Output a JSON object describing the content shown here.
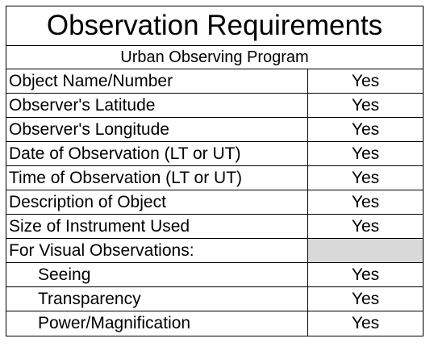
{
  "title": "Observation Requirements",
  "subtitle": "Urban Observing Program",
  "rows": [
    {
      "label": "Object Name/Number",
      "value": "Yes"
    },
    {
      "label": "Observer's Latitude",
      "value": "Yes"
    },
    {
      "label": "Observer's Longitude",
      "value": "Yes"
    },
    {
      "label": "Date of Observation (LT or UT)",
      "value": "Yes"
    },
    {
      "label": "Time of Observation (LT or UT)",
      "value": "Yes"
    },
    {
      "label": "Description of Object",
      "value": "Yes"
    },
    {
      "label": "Size of Instrument Used",
      "value": "Yes"
    },
    {
      "label": "For Visual Observations:",
      "value": ""
    },
    {
      "label": "Seeing",
      "value": "Yes"
    },
    {
      "label": "Transparency",
      "value": "Yes"
    },
    {
      "label": "Power/Magnification",
      "value": "Yes"
    }
  ],
  "colors": {
    "border": "#000000",
    "shaded_cell": "#d9d9d9"
  }
}
